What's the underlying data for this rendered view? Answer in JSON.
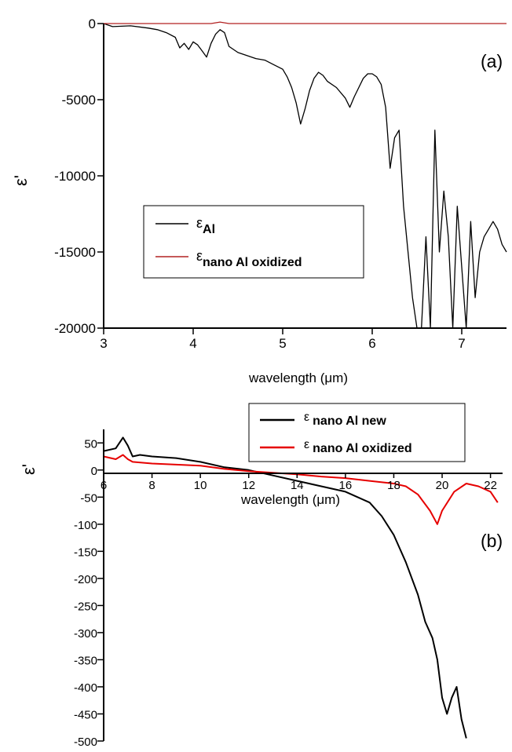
{
  "chart_data": [
    {
      "type": "line",
      "panel_label": "(a)",
      "xlabel": "wavelength (μm)",
      "ylabel": "ε'",
      "xlim": [
        3,
        7.5
      ],
      "ylim": [
        -20000,
        0
      ],
      "x_ticks": [
        "3",
        "4",
        "5",
        "6",
        "7"
      ],
      "x_tick_values": [
        3,
        4,
        5,
        6,
        7
      ],
      "y_ticks": [
        "0",
        "-5000",
        "-10000",
        "-15000",
        "-20000"
      ],
      "y_tick_values": [
        0,
        -5000,
        -10000,
        -15000,
        -20000
      ],
      "grid": false,
      "legend_position": "lower-left",
      "series": [
        {
          "name": "εAl",
          "name_base": "ε",
          "name_sub": "Al",
          "color": "#000000",
          "x": [
            3.0,
            3.1,
            3.3,
            3.5,
            3.6,
            3.7,
            3.8,
            3.85,
            3.9,
            3.95,
            4.0,
            4.05,
            4.1,
            4.15,
            4.2,
            4.25,
            4.3,
            4.35,
            4.4,
            4.5,
            4.6,
            4.7,
            4.8,
            4.9,
            5.0,
            5.05,
            5.1,
            5.15,
            5.2,
            5.25,
            5.3,
            5.35,
            5.4,
            5.45,
            5.5,
            5.6,
            5.7,
            5.75,
            5.8,
            5.85,
            5.9,
            5.95,
            6.0,
            6.05,
            6.1,
            6.15,
            6.2,
            6.25,
            6.3,
            6.35,
            6.4,
            6.45,
            6.5,
            6.55,
            6.6,
            6.65,
            6.7,
            6.75,
            6.8,
            6.85,
            6.9,
            6.95,
            7.0,
            7.05,
            7.1,
            7.15,
            7.2,
            7.25,
            7.3,
            7.35,
            7.4,
            7.45,
            7.5
          ],
          "y": [
            0,
            -200,
            -150,
            -300,
            -400,
            -600,
            -900,
            -1600,
            -1300,
            -1700,
            -1200,
            -1400,
            -1800,
            -2200,
            -1300,
            -700,
            -400,
            -600,
            -1500,
            -1900,
            -2100,
            -2300,
            -2400,
            -2700,
            -3000,
            -3500,
            -4200,
            -5200,
            -6600,
            -5600,
            -4400,
            -3600,
            -3200,
            -3400,
            -3800,
            -4200,
            -4900,
            -5500,
            -4800,
            -4200,
            -3600,
            -3300,
            -3300,
            -3500,
            -4000,
            -5500,
            -9500,
            -7500,
            -7000,
            -12000,
            -15000,
            -18000,
            -20000,
            -20000,
            -14000,
            -20000,
            -7000,
            -15000,
            -11000,
            -14000,
            -20000,
            -12000,
            -16000,
            -20000,
            -13000,
            -18000,
            -15000,
            -14000,
            -13500,
            -13000,
            -13500,
            -14500,
            -15000
          ]
        },
        {
          "name": "εnano Al oxidized",
          "name_base": "ε",
          "name_sub": "nano Al oxidized",
          "color": "#b22222",
          "x": [
            3.0,
            4.2,
            4.3,
            4.4,
            7.5
          ],
          "y": [
            0,
            0,
            100,
            0,
            0
          ]
        }
      ]
    },
    {
      "type": "line",
      "panel_label": "(b)",
      "xlabel": "wavelength (μm)",
      "ylabel": "ε'",
      "xlim": [
        6,
        22.5
      ],
      "ylim": [
        -500,
        75
      ],
      "x_ticks": [
        "6",
        "8",
        "10",
        "12",
        "14",
        "16",
        "18",
        "20",
        "22"
      ],
      "x_tick_values": [
        6,
        8,
        10,
        12,
        14,
        16,
        18,
        20,
        22
      ],
      "y_ticks": [
        "50",
        "0",
        "-50",
        "-100",
        "-150",
        "-200",
        "-250",
        "-300",
        "-350",
        "-400",
        "-450",
        "-500"
      ],
      "y_tick_values": [
        50,
        0,
        -50,
        -100,
        -150,
        -200,
        -250,
        -300,
        -350,
        -400,
        -450,
        -500
      ],
      "grid": false,
      "legend_position": "top-right",
      "series": [
        {
          "name": "ε nano Al new",
          "name_base": "ε",
          "name_sub": "nano Al new",
          "color": "#000000",
          "x": [
            6.0,
            6.5,
            6.8,
            7.0,
            7.2,
            7.5,
            8.0,
            9.0,
            10.0,
            11.0,
            12.0,
            13.0,
            14.0,
            15.0,
            16.0,
            16.5,
            17.0,
            17.5,
            18.0,
            18.5,
            19.0,
            19.3,
            19.6,
            19.8,
            20.0,
            20.2,
            20.4,
            20.6,
            20.8,
            21.0
          ],
          "y": [
            35,
            40,
            60,
            45,
            25,
            28,
            25,
            22,
            15,
            5,
            0,
            -10,
            -20,
            -30,
            -40,
            -50,
            -60,
            -85,
            -120,
            -170,
            -230,
            -280,
            -310,
            -350,
            -420,
            -450,
            -420,
            -400,
            -460,
            -495
          ]
        },
        {
          "name": "ε nano Al oxidized",
          "name_base": "ε",
          "name_sub": "nano Al oxidized",
          "color": "#e60000",
          "x": [
            6.0,
            6.5,
            6.8,
            7.0,
            7.2,
            8.0,
            9.0,
            10.0,
            11.0,
            12.0,
            13.0,
            14.0,
            15.0,
            16.0,
            17.0,
            18.0,
            18.5,
            19.0,
            19.5,
            19.8,
            20.0,
            20.5,
            21.0,
            21.5,
            22.0,
            22.3
          ],
          "y": [
            25,
            20,
            28,
            20,
            15,
            12,
            10,
            8,
            2,
            -2,
            -5,
            -8,
            -12,
            -15,
            -20,
            -25,
            -30,
            -45,
            -75,
            -100,
            -75,
            -40,
            -25,
            -30,
            -40,
            -60
          ]
        }
      ]
    }
  ]
}
